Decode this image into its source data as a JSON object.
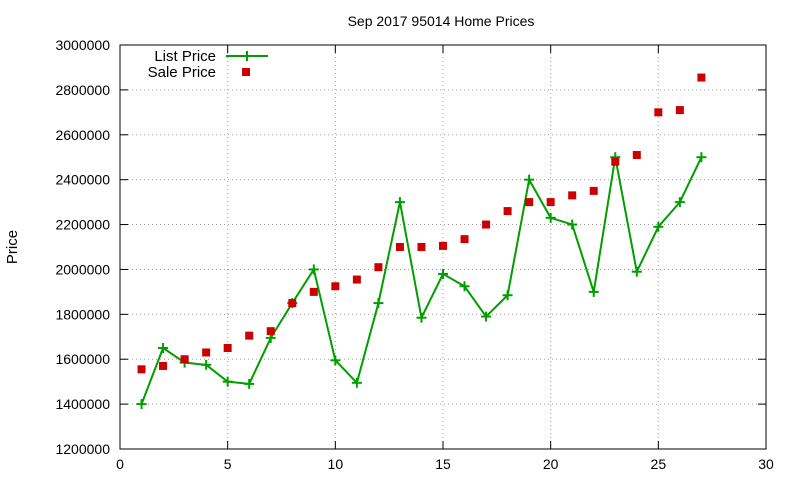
{
  "chart_data": {
    "type": "line",
    "title": "Sep 2017 95014 Home Prices",
    "xlabel": "",
    "ylabel": "Price",
    "xlim": [
      0,
      30
    ],
    "ylim": [
      1200000,
      3000000
    ],
    "x_ticks": [
      0,
      5,
      10,
      15,
      20,
      25,
      30
    ],
    "y_ticks": [
      1200000,
      1400000,
      1600000,
      1800000,
      2000000,
      2200000,
      2400000,
      2600000,
      2800000,
      3000000
    ],
    "grid": true,
    "legend_position": "top-left",
    "x": [
      1,
      2,
      3,
      4,
      5,
      6,
      7,
      8,
      9,
      10,
      11,
      12,
      13,
      14,
      15,
      16,
      17,
      18,
      19,
      20,
      21,
      22,
      23,
      24,
      25,
      26,
      27
    ],
    "series": [
      {
        "name": "List Price",
        "style": "line-plus",
        "color": "#009e00",
        "values": [
          1400000,
          1650000,
          1585000,
          1575000,
          1500000,
          1490000,
          1695000,
          1850000,
          2000000,
          1595000,
          1495000,
          1850000,
          2300000,
          1785000,
          1980000,
          1925000,
          1790000,
          1885000,
          2400000,
          2230000,
          2200000,
          1900000,
          2500000,
          1990000,
          2190000,
          2300000,
          2500000
        ]
      },
      {
        "name": "Sale Price",
        "style": "square",
        "color": "#cc0000",
        "values": [
          1555000,
          1570000,
          1600000,
          1630000,
          1650000,
          1705000,
          1725000,
          1850000,
          1900000,
          1925000,
          1955000,
          2010000,
          2100000,
          2100000,
          2105000,
          2135000,
          2200000,
          2260000,
          2300000,
          2300000,
          2330000,
          2350000,
          2480000,
          2510000,
          2700000,
          2710000,
          2855000
        ]
      }
    ]
  }
}
